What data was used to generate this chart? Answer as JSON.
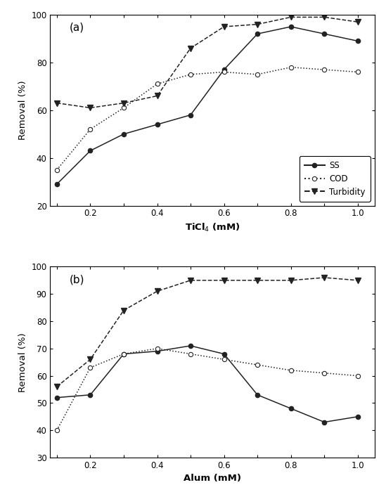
{
  "panel_a": {
    "label": "(a)",
    "xlabel": "TiCl$_4$ (mM)",
    "ylabel": "Removal (%)",
    "ylim": [
      20,
      100
    ],
    "yticks": [
      20,
      40,
      60,
      80,
      100
    ],
    "xlim": [
      0.08,
      1.05
    ],
    "xticks": [
      0.1,
      0.2,
      0.3,
      0.4,
      0.5,
      0.6,
      0.7,
      0.8,
      0.9,
      1.0
    ],
    "xticklabels": [
      "",
      "0.2",
      "",
      "0.4",
      "",
      "0.6",
      "",
      "0.8",
      "",
      "1.0"
    ],
    "SS": {
      "x": [
        0.1,
        0.2,
        0.3,
        0.4,
        0.5,
        0.6,
        0.7,
        0.8,
        0.9,
        1.0
      ],
      "y": [
        29,
        43,
        50,
        54,
        58,
        77,
        92,
        95,
        92,
        89
      ]
    },
    "COD": {
      "x": [
        0.1,
        0.2,
        0.3,
        0.4,
        0.5,
        0.6,
        0.7,
        0.8,
        0.9,
        1.0
      ],
      "y": [
        35,
        52,
        61,
        71,
        75,
        76,
        75,
        78,
        77,
        76
      ]
    },
    "Turbidity": {
      "x": [
        0.1,
        0.2,
        0.3,
        0.4,
        0.5,
        0.6,
        0.7,
        0.8,
        0.9,
        1.0
      ],
      "y": [
        63,
        61,
        63,
        66,
        86,
        95,
        96,
        99,
        99,
        97
      ]
    },
    "legend_loc": "lower right"
  },
  "panel_b": {
    "label": "(b)",
    "xlabel": "Alum (mM)",
    "ylabel": "Removal (%)",
    "ylim": [
      30,
      100
    ],
    "yticks": [
      30,
      40,
      50,
      60,
      70,
      80,
      90,
      100
    ],
    "xlim": [
      0.08,
      1.05
    ],
    "xticks": [
      0.1,
      0.2,
      0.3,
      0.4,
      0.5,
      0.6,
      0.7,
      0.8,
      0.9,
      1.0
    ],
    "xticklabels": [
      "",
      "0.2",
      "",
      "0.4",
      "",
      "0.6",
      "",
      "0.8",
      "",
      "1.0"
    ],
    "SS": {
      "x": [
        0.1,
        0.2,
        0.3,
        0.4,
        0.5,
        0.6,
        0.7,
        0.8,
        0.9,
        1.0
      ],
      "y": [
        52,
        53,
        68,
        69,
        71,
        68,
        53,
        48,
        43,
        45
      ]
    },
    "COD": {
      "x": [
        0.1,
        0.2,
        0.3,
        0.4,
        0.5,
        0.6,
        0.7,
        0.8,
        0.9,
        1.0
      ],
      "y": [
        40,
        63,
        68,
        70,
        68,
        66,
        64,
        62,
        61,
        60
      ]
    },
    "Turbidity": {
      "x": [
        0.1,
        0.2,
        0.3,
        0.4,
        0.5,
        0.6,
        0.7,
        0.8,
        0.9,
        1.0
      ],
      "y": [
        56,
        66,
        84,
        91,
        95,
        95,
        95,
        95,
        96,
        95
      ]
    },
    "legend_loc": null
  },
  "legend": {
    "SS_label": "SS",
    "COD_label": "COD",
    "Turbidity_label": "Turbidity"
  },
  "line_color": "#222222",
  "figure_size": [
    5.49,
    7.0
  ],
  "dpi": 100
}
